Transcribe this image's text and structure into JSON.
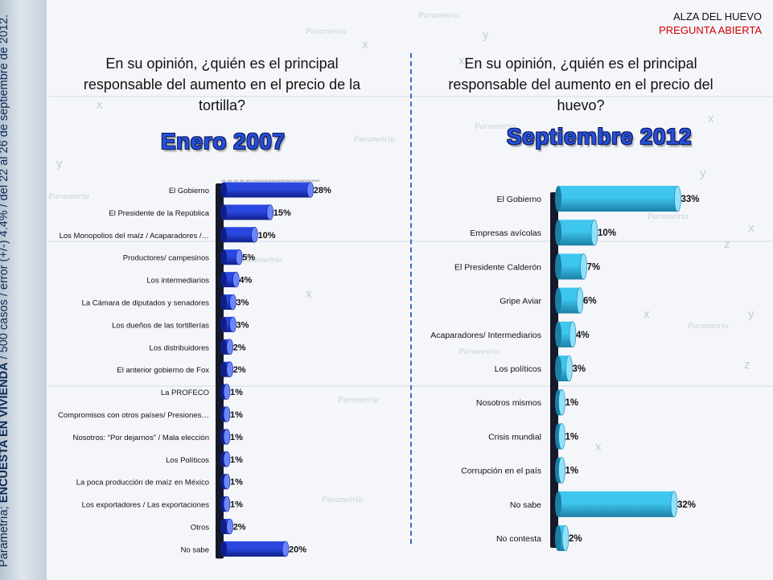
{
  "header": {
    "topic": "ALZA DEL HUEVO",
    "question_type": "PREGUNTA ABIERTA"
  },
  "sidebar": {
    "source_prefix": "Parametría; ",
    "survey_name": "ENCUESTA EN VIVIENDA",
    "details": " / 500 casos / error (+/-) 4.4% / del 22 al 26 de septiembre de 2012."
  },
  "left": {
    "question": "En su opinión, ¿quién es el principal responsable del aumento en el precio de la tortilla?",
    "period": "Enero 2007"
  },
  "right": {
    "question": "En su opinión, ¿quién es el principal responsable del aumento en el precio del huevo?",
    "period": "Septiembre 2012"
  },
  "colors": {
    "left_bar": "#2a48e0",
    "left_bar_dark": "#0f1f8a",
    "right_bar": "#3ec6ef",
    "right_bar_dark": "#1b7fa6",
    "axis_wall": "#15192a",
    "divider": "#3a6fb8",
    "accent_red": "#d00000"
  },
  "chart_data": [
    {
      "type": "bar",
      "orientation": "horizontal",
      "title": "Enero 2007",
      "categories": [
        "El Gobierno",
        "El Presidente de la República",
        "Los Monopolios del maíz / Acaparadores /…",
        "Productores/ campesinos",
        "Los intermediarios",
        "La Cámara de diputados y senadores",
        "Los dueños de las tortillerías",
        "Los distribuidores",
        "El anterior gobierno de Fox",
        "La PROFECO",
        "Compromisos con otros países/ Presiones…",
        "Nosotros: “Por dejarnos” / Mala elección",
        "Los Políticos",
        "La poca producción de maíz en México",
        "Los exportadores / Las exportaciones",
        "Otros",
        "No sabe"
      ],
      "values": [
        28,
        15,
        10,
        5,
        4,
        3,
        3,
        2,
        2,
        1,
        1,
        1,
        1,
        1,
        1,
        2,
        20
      ],
      "value_labels": [
        "28%",
        "15%",
        "10%",
        "5%",
        "4%",
        "3%",
        "3%",
        "2%",
        "2%",
        "1%",
        "1%",
        "1%",
        "1%",
        "1%",
        "1%",
        "2%",
        "20%"
      ],
      "tick_labels": [
        "0%",
        "2%",
        "4%",
        "6%",
        "8%",
        "10%",
        "12%",
        "14%",
        "16%",
        "18%",
        "20%",
        "22%",
        "24%",
        "26%",
        "28%",
        "30%"
      ],
      "xlim": [
        0,
        30
      ]
    },
    {
      "type": "bar",
      "orientation": "horizontal",
      "title": "Septiembre 2012",
      "categories": [
        "El Gobierno",
        "Empresas avícolas",
        "El Presidente Calderón",
        "Gripe Aviar",
        "Acaparadores/ Intermediarios",
        "Los políticos",
        "Nosotros mismos",
        "Crisis mundial",
        "Corrupción en el país",
        "No sabe",
        "No contesta"
      ],
      "values": [
        33,
        10,
        7,
        6,
        4,
        3,
        1,
        1,
        1,
        32,
        2
      ],
      "value_labels": [
        "33%",
        "10%",
        "7%",
        "6%",
        "4%",
        "3%",
        "1%",
        "1%",
        "1%",
        "32%",
        "2%"
      ],
      "xlim": [
        0,
        35
      ]
    }
  ]
}
